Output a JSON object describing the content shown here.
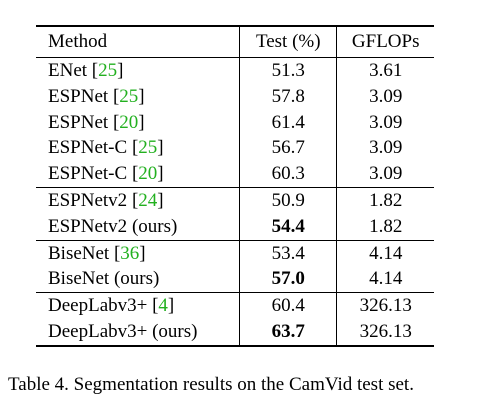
{
  "table": {
    "headers": {
      "method": "Method",
      "test": "Test (%)",
      "gflops": "GFLOPs"
    },
    "groups": [
      {
        "rows": [
          {
            "method": "ENet",
            "cite": "25",
            "suffix": "",
            "test": "51.3",
            "gflops": "3.61",
            "best": false
          },
          {
            "method": "ESPNet",
            "cite": "25",
            "suffix": "",
            "test": "57.8",
            "gflops": "3.09",
            "best": false
          },
          {
            "method": "ESPNet",
            "cite": "20",
            "suffix": "",
            "test": "61.4",
            "gflops": "3.09",
            "best": false
          },
          {
            "method": "ESPNet-C",
            "cite": "25",
            "suffix": "",
            "test": "56.7",
            "gflops": "3.09",
            "best": false
          },
          {
            "method": "ESPNet-C",
            "cite": "20",
            "suffix": "",
            "test": "60.3",
            "gflops": "3.09",
            "best": false
          }
        ]
      },
      {
        "rows": [
          {
            "method": "ESPNetv2",
            "cite": "24",
            "suffix": "",
            "test": "50.9",
            "gflops": "1.82",
            "best": false
          },
          {
            "method": "ESPNetv2",
            "cite": "",
            "suffix": "(ours)",
            "test": "54.4",
            "gflops": "1.82",
            "best": true
          }
        ]
      },
      {
        "rows": [
          {
            "method": "BiseNet",
            "cite": "36",
            "suffix": "",
            "test": "53.4",
            "gflops": "4.14",
            "best": false
          },
          {
            "method": "BiseNet",
            "cite": "",
            "suffix": "(ours)",
            "test": "57.0",
            "gflops": "4.14",
            "best": true
          }
        ]
      },
      {
        "rows": [
          {
            "method": "DeepLabv3+",
            "cite": "4",
            "suffix": "",
            "test": "60.4",
            "gflops": "326.13",
            "best": false
          },
          {
            "method": "DeepLabv3+",
            "cite": "",
            "suffix": "(ours)",
            "test": "63.7",
            "gflops": "326.13",
            "best": true
          }
        ]
      }
    ]
  },
  "caption": "Table 4. Segmentation results on the CamVid test set.",
  "colors": {
    "citation": "#22b01f",
    "text": "#000000"
  }
}
